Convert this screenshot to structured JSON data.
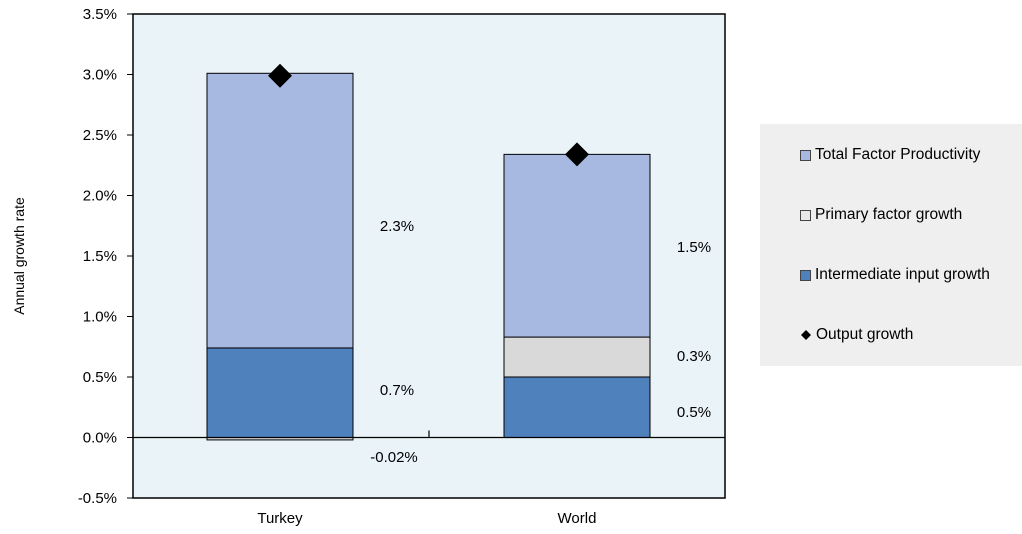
{
  "chart_data": {
    "type": "bar",
    "stacked": true,
    "categories": [
      "Turkey",
      "World"
    ],
    "ylabel": "Annual growth rate",
    "ylim": [
      -0.5,
      3.5
    ],
    "yticks": [
      "-0.5%",
      "0.0%",
      "0.5%",
      "1.0%",
      "1.5%",
      "2.0%",
      "2.5%",
      "3.0%",
      "3.5%"
    ],
    "series": [
      {
        "name": "Intermediate input growth",
        "color": "#4f81bd",
        "values": [
          0.74,
          0.5
        ],
        "labels": [
          "0.7%",
          "0.5%"
        ]
      },
      {
        "name": "Primary factor growth",
        "color": "#d9d9d9",
        "values": [
          -0.02,
          0.33
        ],
        "labels": [
          "-0.02%",
          "0.3%"
        ]
      },
      {
        "name": "Total Factor Productivity",
        "color": "#a7b9e1",
        "values": [
          2.27,
          1.51
        ],
        "labels": [
          "2.3%",
          "1.5%"
        ]
      }
    ],
    "output_growth": {
      "name": "Output growth",
      "values": [
        2.99,
        2.34
      ]
    },
    "legend_position": "right",
    "legend_items": [
      {
        "name": "Total Factor Productivity",
        "marker": "square",
        "color": "#a7b9e1"
      },
      {
        "name": "Primary factor growth",
        "marker": "square",
        "color": "#e8e8e8"
      },
      {
        "name": "Intermediate input growth",
        "marker": "square",
        "color": "#4f81bd"
      },
      {
        "name": "Output growth",
        "marker": "diamond",
        "color": "#000000"
      }
    ]
  }
}
